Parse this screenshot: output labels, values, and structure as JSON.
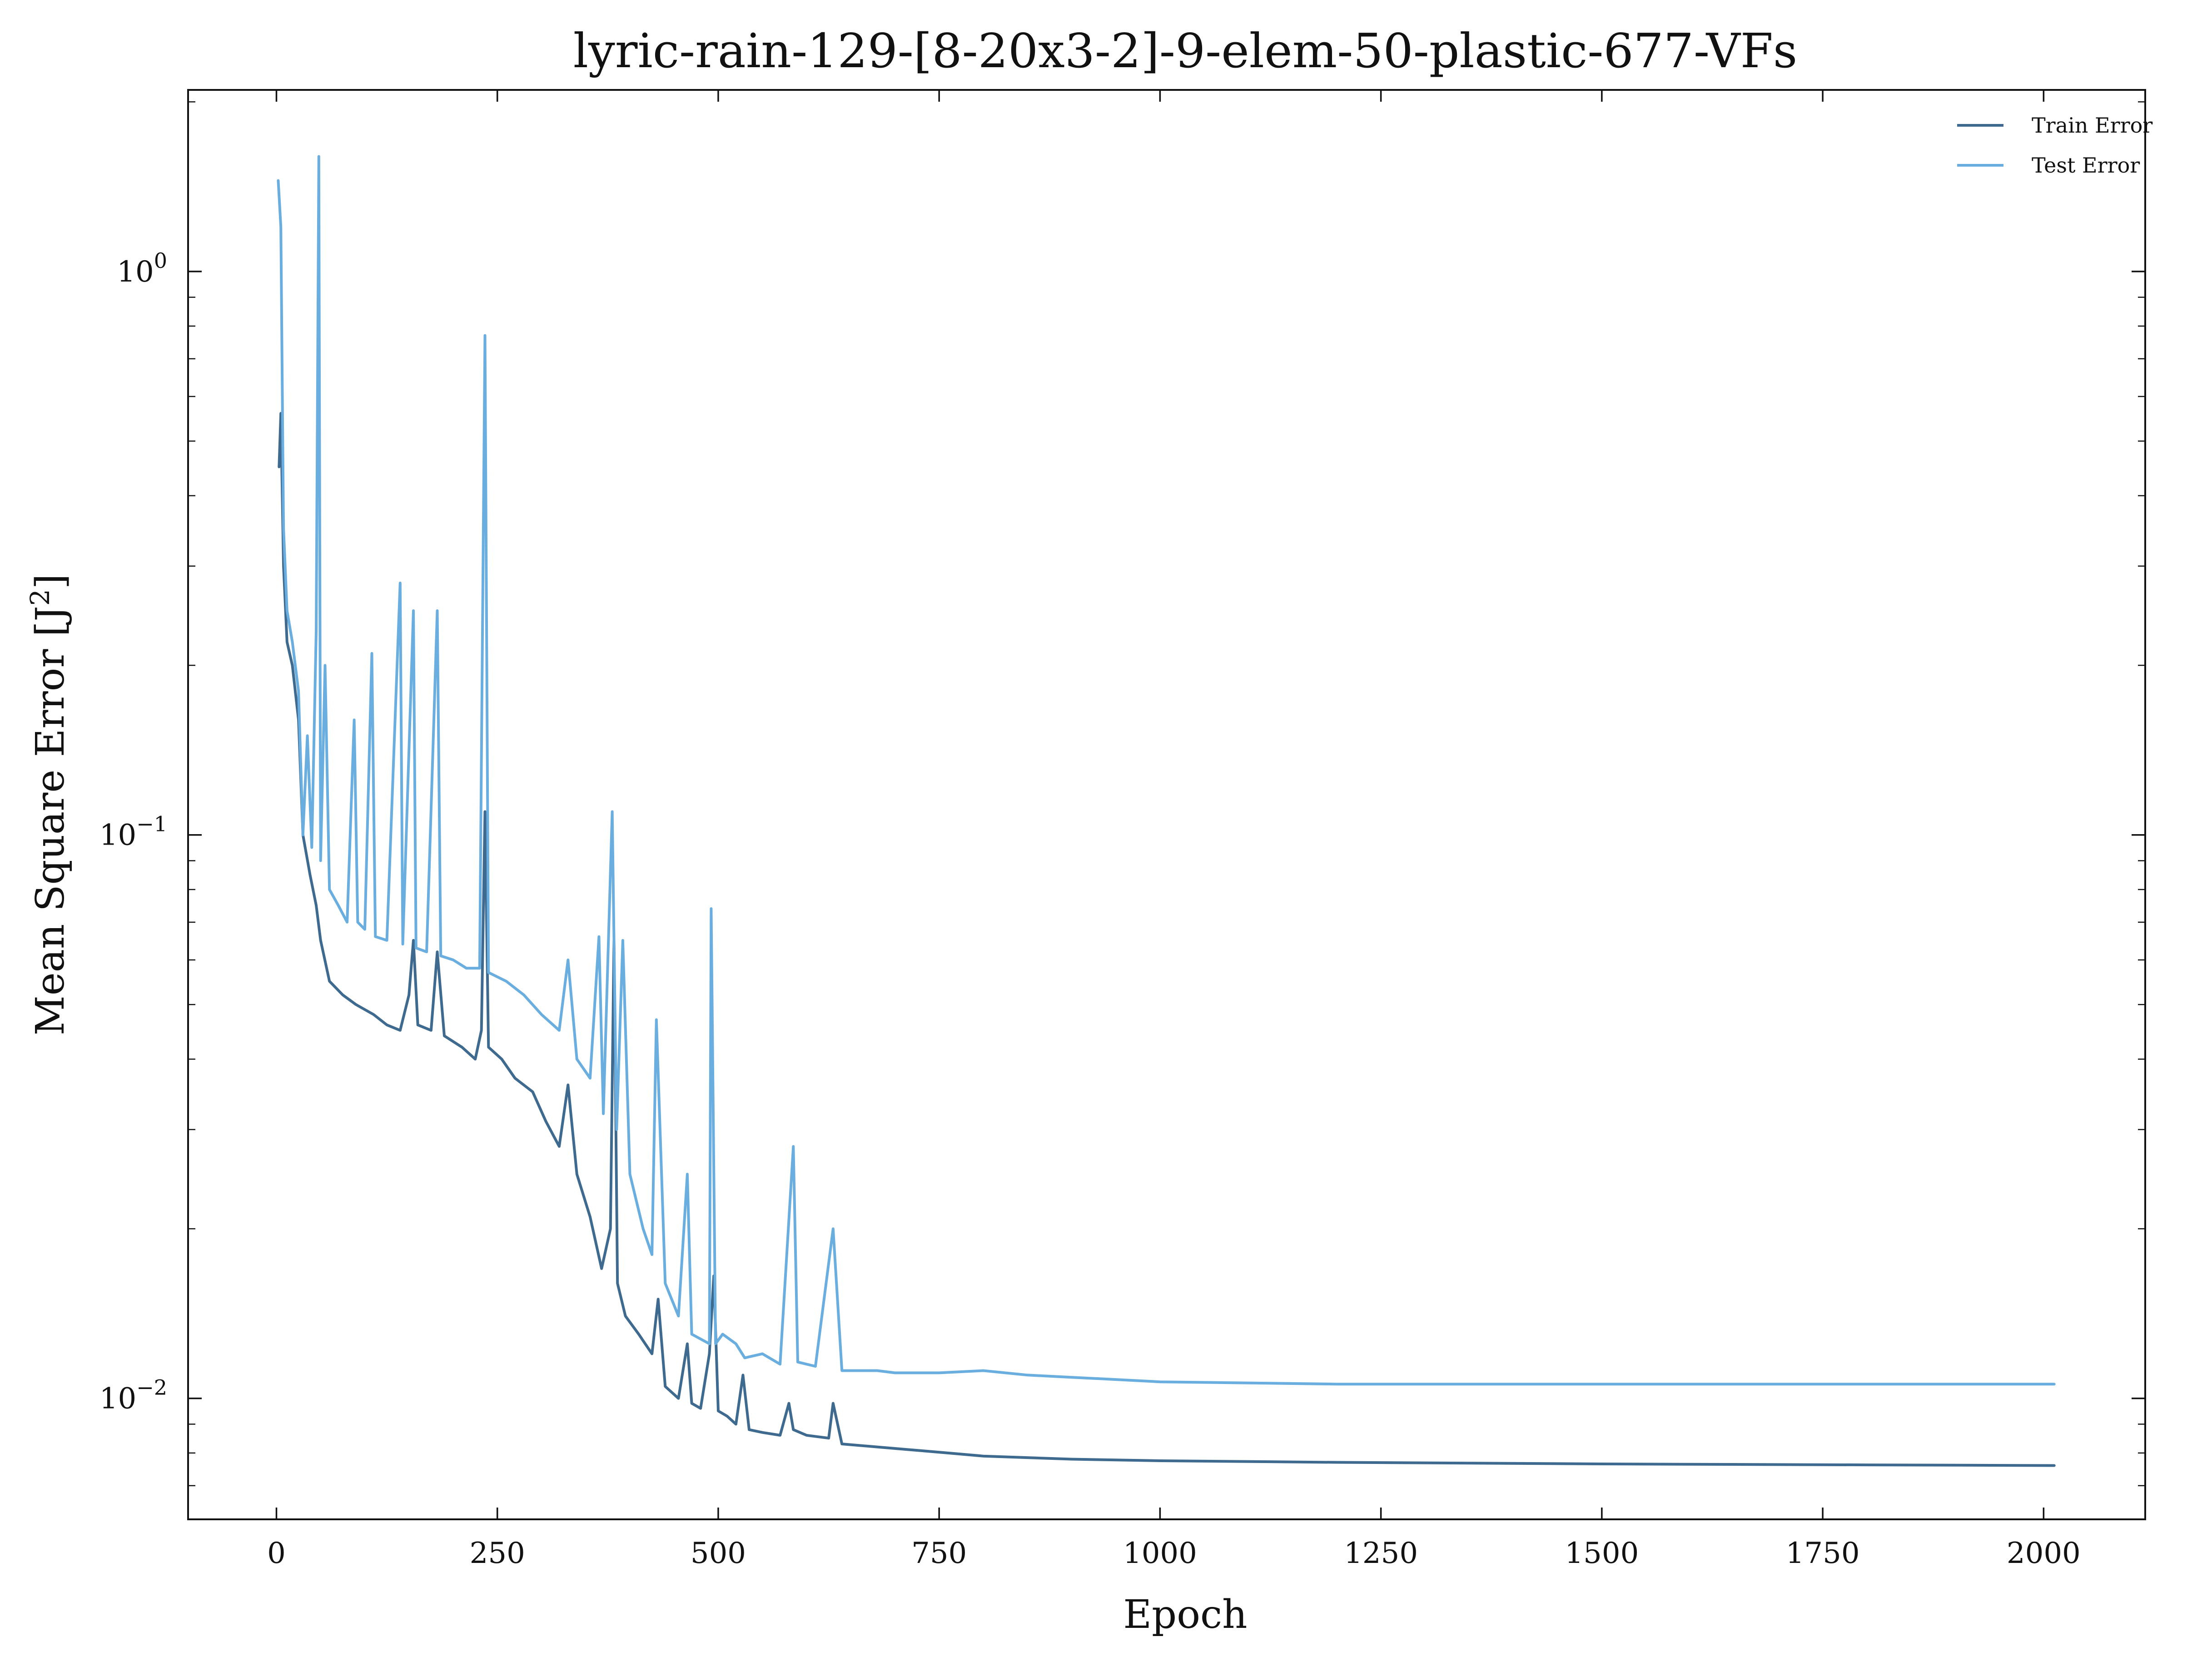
{
  "chart_data": {
    "type": "line",
    "title": "lyric-rain-129-[8-20x3-2]-9-elem-50-plastic-677-VFs",
    "xlabel": "Epoch",
    "ylabel": "Mean Square Error [J",
    "ylabel_sup": "2",
    "ylabel_end": "]",
    "x_scale": "linear",
    "y_scale": "log",
    "xlim": [
      -100,
      2115
    ],
    "ylim": [
      0.0061,
      2.1
    ],
    "grid": false,
    "legend_position": "top-right",
    "x_ticks": [
      0,
      250,
      500,
      750,
      1000,
      1250,
      1500,
      1750,
      2000
    ],
    "x_tick_labels": [
      "0",
      "250",
      "500",
      "750",
      "1000",
      "1250",
      "1500",
      "1750",
      "2000"
    ],
    "y_ticks": [
      {
        "value": 1,
        "base": "10",
        "exp": "0"
      },
      {
        "value": 0.1,
        "base": "10",
        "exp": "−1"
      },
      {
        "value": 0.01,
        "base": "10",
        "exp": "−2"
      }
    ],
    "series": [
      {
        "name": "Train Error",
        "color": "#3f6a8f",
        "points": [
          [
            3,
            0.45
          ],
          [
            5,
            0.56
          ],
          [
            8,
            0.3
          ],
          [
            12,
            0.22
          ],
          [
            18,
            0.2
          ],
          [
            25,
            0.16
          ],
          [
            30,
            0.1
          ],
          [
            38,
            0.085
          ],
          [
            45,
            0.075
          ],
          [
            50,
            0.065
          ],
          [
            60,
            0.055
          ],
          [
            75,
            0.052
          ],
          [
            90,
            0.05
          ],
          [
            110,
            0.048
          ],
          [
            125,
            0.046
          ],
          [
            140,
            0.045
          ],
          [
            150,
            0.052
          ],
          [
            155,
            0.065
          ],
          [
            160,
            0.046
          ],
          [
            175,
            0.045
          ],
          [
            182,
            0.062
          ],
          [
            190,
            0.044
          ],
          [
            210,
            0.042
          ],
          [
            225,
            0.04
          ],
          [
            232,
            0.045
          ],
          [
            236,
            0.11
          ],
          [
            240,
            0.042
          ],
          [
            255,
            0.04
          ],
          [
            270,
            0.037
          ],
          [
            290,
            0.035
          ],
          [
            305,
            0.031
          ],
          [
            320,
            0.028
          ],
          [
            330,
            0.036
          ],
          [
            340,
            0.025
          ],
          [
            355,
            0.021
          ],
          [
            368,
            0.017
          ],
          [
            378,
            0.02
          ],
          [
            382,
            0.065
          ],
          [
            386,
            0.016
          ],
          [
            395,
            0.014
          ],
          [
            410,
            0.013
          ],
          [
            425,
            0.012
          ],
          [
            432,
            0.015
          ],
          [
            440,
            0.0105
          ],
          [
            455,
            0.01
          ],
          [
            465,
            0.0125
          ],
          [
            470,
            0.0098
          ],
          [
            480,
            0.0096
          ],
          [
            490,
            0.012
          ],
          [
            495,
            0.0165
          ],
          [
            500,
            0.0095
          ],
          [
            510,
            0.0093
          ],
          [
            520,
            0.009
          ],
          [
            528,
            0.011
          ],
          [
            535,
            0.0088
          ],
          [
            550,
            0.0087
          ],
          [
            570,
            0.0086
          ],
          [
            580,
            0.0098
          ],
          [
            585,
            0.0088
          ],
          [
            600,
            0.0086
          ],
          [
            625,
            0.0085
          ],
          [
            630,
            0.0098
          ],
          [
            640,
            0.0083
          ],
          [
            680,
            0.0082
          ],
          [
            720,
            0.0081
          ],
          [
            760,
            0.008
          ],
          [
            800,
            0.0079
          ],
          [
            900,
            0.0078
          ],
          [
            1000,
            0.00775
          ],
          [
            1200,
            0.0077
          ],
          [
            1500,
            0.00765
          ],
          [
            1800,
            0.00762
          ],
          [
            2012,
            0.0076
          ]
        ]
      },
      {
        "name": "Test Error",
        "color": "#6aaee0",
        "points": [
          [
            2,
            1.45
          ],
          [
            5,
            1.2
          ],
          [
            8,
            0.35
          ],
          [
            12,
            0.25
          ],
          [
            18,
            0.22
          ],
          [
            25,
            0.18
          ],
          [
            30,
            0.1
          ],
          [
            35,
            0.15
          ],
          [
            40,
            0.095
          ],
          [
            45,
            0.23
          ],
          [
            48,
            1.6
          ],
          [
            50,
            0.09
          ],
          [
            55,
            0.2
          ],
          [
            60,
            0.08
          ],
          [
            70,
            0.075
          ],
          [
            80,
            0.07
          ],
          [
            88,
            0.16
          ],
          [
            92,
            0.07
          ],
          [
            100,
            0.068
          ],
          [
            108,
            0.21
          ],
          [
            112,
            0.066
          ],
          [
            125,
            0.065
          ],
          [
            140,
            0.28
          ],
          [
            143,
            0.064
          ],
          [
            155,
            0.25
          ],
          [
            158,
            0.063
          ],
          [
            170,
            0.062
          ],
          [
            182,
            0.25
          ],
          [
            186,
            0.061
          ],
          [
            200,
            0.06
          ],
          [
            215,
            0.058
          ],
          [
            230,
            0.058
          ],
          [
            236,
            0.77
          ],
          [
            240,
            0.057
          ],
          [
            260,
            0.055
          ],
          [
            280,
            0.052
          ],
          [
            300,
            0.048
          ],
          [
            320,
            0.045
          ],
          [
            330,
            0.06
          ],
          [
            340,
            0.04
          ],
          [
            355,
            0.037
          ],
          [
            365,
            0.066
          ],
          [
            370,
            0.032
          ],
          [
            380,
            0.11
          ],
          [
            385,
            0.03
          ],
          [
            392,
            0.065
          ],
          [
            400,
            0.025
          ],
          [
            415,
            0.02
          ],
          [
            425,
            0.018
          ],
          [
            430,
            0.047
          ],
          [
            440,
            0.016
          ],
          [
            455,
            0.014
          ],
          [
            465,
            0.025
          ],
          [
            470,
            0.013
          ],
          [
            490,
            0.0125
          ],
          [
            492,
            0.074
          ],
          [
            497,
            0.0125
          ],
          [
            505,
            0.013
          ],
          [
            520,
            0.0125
          ],
          [
            530,
            0.0118
          ],
          [
            550,
            0.012
          ],
          [
            570,
            0.0115
          ],
          [
            585,
            0.028
          ],
          [
            590,
            0.0116
          ],
          [
            610,
            0.0114
          ],
          [
            630,
            0.02
          ],
          [
            640,
            0.0112
          ],
          [
            680,
            0.0112
          ],
          [
            700,
            0.0111
          ],
          [
            750,
            0.0111
          ],
          [
            800,
            0.0112
          ],
          [
            850,
            0.011
          ],
          [
            900,
            0.0109
          ],
          [
            950,
            0.0108
          ],
          [
            1000,
            0.0107
          ],
          [
            1200,
            0.0106
          ],
          [
            1500,
            0.0106
          ],
          [
            1800,
            0.0106
          ],
          [
            2012,
            0.0106
          ]
        ]
      }
    ]
  }
}
